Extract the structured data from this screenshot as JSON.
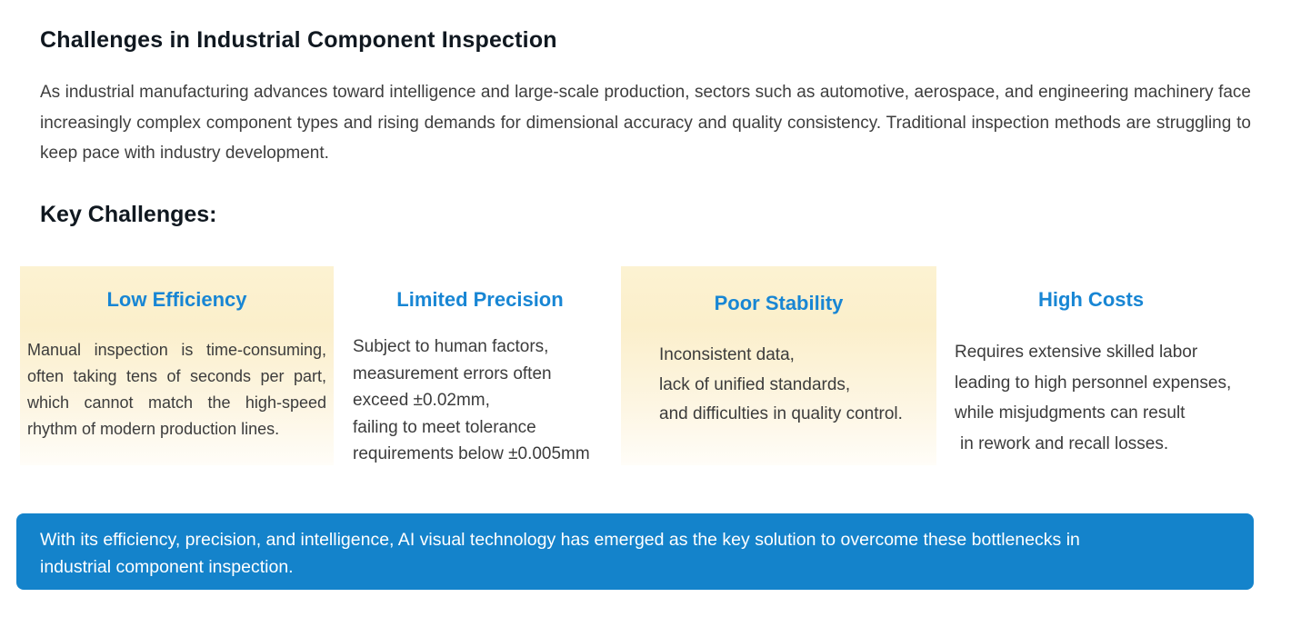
{
  "page": {
    "title": "Challenges in Industrial Component Inspection",
    "intro": "As industrial manufacturing advances toward intelligence and large-scale production, sectors such as automotive, aerospace, and engineering machinery face increasingly complex component types and rising demands for dimensional accuracy and quality consistency. Traditional inspection methods are struggling to keep pace with industry development.",
    "section_heading": "Key Challenges:"
  },
  "challenges": [
    {
      "title": "Low Efficiency",
      "highlighted": true,
      "body": "Manual inspection is time-consuming, often taking tens of seconds per part, which cannot match the high-speed rhythm of modern production lines."
    },
    {
      "title": "Limited Precision",
      "highlighted": false,
      "lines": [
        "Subject to human factors,",
        "measurement errors often",
        "exceed ±0.02mm,",
        "failing to meet tolerance",
        "requirements below ±0.005mm"
      ]
    },
    {
      "title": "Poor Stability",
      "highlighted": true,
      "lines": [
        "Inconsistent data,",
        "lack of unified standards,",
        "and difficulties in quality control."
      ]
    },
    {
      "title": "High Costs",
      "highlighted": false,
      "lines": [
        "Requires extensive skilled labor",
        "leading to high personnel expenses,",
        "while misjudgments can result",
        "in rework and recall losses."
      ]
    }
  ],
  "banner": {
    "text": "With its efficiency, precision, and intelligence, AI visual technology has emerged as the key solution to overcome these bottlenecks in industrial component inspection."
  },
  "colors": {
    "accent_blue": "#1886D4",
    "banner_blue": "#1483CB",
    "highlight_gradient_top": "#FBEFCB",
    "highlight_gradient_bottom": "#FFFDF8",
    "title_text": "#101820",
    "body_text": "#3C3C3C",
    "banner_text": "#FFFFFF"
  }
}
